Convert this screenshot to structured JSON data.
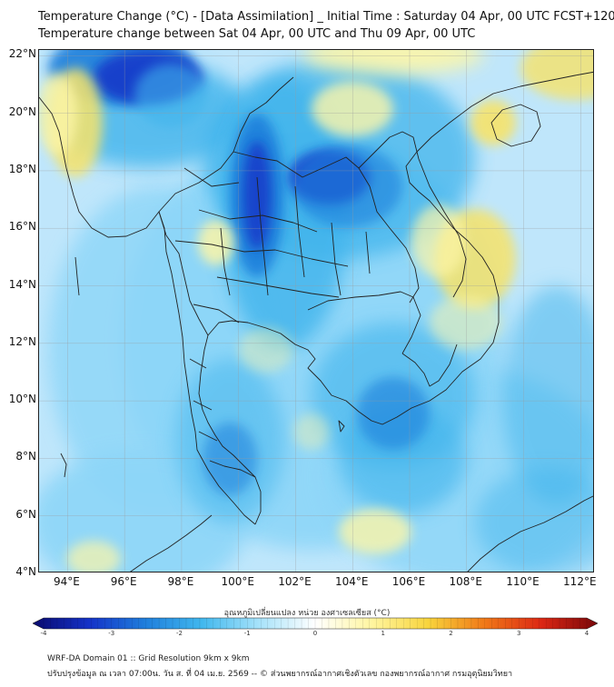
{
  "header": {
    "title_line1": "Temperature Change (°C) - [Data Assimilation] _ Initial Time : Saturday 04 Apr, 00 UTC FCST+120",
    "title_line2": "Temperature change between Sat 04 Apr, 00 UTC and Thu 09 Apr, 00 UTC"
  },
  "map": {
    "lon_range": [
      93,
      112.5
    ],
    "lat_range": [
      4,
      22.2
    ],
    "lat_labels": [
      "22°N",
      "20°N",
      "18°N",
      "16°N",
      "14°N",
      "12°N",
      "10°N",
      "8°N",
      "6°N",
      "4°N"
    ],
    "lon_labels": [
      "94°E",
      "96°E",
      "98°E",
      "100°E",
      "102°E",
      "104°E",
      "106°E",
      "108°E",
      "110°E",
      "112°E"
    ],
    "field_colors": {
      "base": "#bfe6fb",
      "light_blue": "#8dd6f8",
      "mid_blue": "#41b4ec",
      "blue": "#1e7fdb",
      "deep_blue": "#1436c8",
      "pale_yellow": "#fdf6a8",
      "yellow": "#f7e36a"
    },
    "coastline_color": "#222222",
    "grid_color": "#9a9a9a"
  },
  "colorbar": {
    "title": "อุณหภูมิเปลี่ยนแปลง หน่วย องศาเซลเซียส (°C)",
    "ticks": [
      "-4",
      "-3",
      "-2",
      "-1",
      "0",
      "1",
      "2",
      "3",
      "4"
    ],
    "range": [
      -4,
      4
    ],
    "stops": [
      "#0a0a6e",
      "#1432c8",
      "#1f7fdc",
      "#41b8ee",
      "#a6e2fa",
      "#ffffff",
      "#fff5a0",
      "#f8d43c",
      "#f07818",
      "#dc2814",
      "#78060a"
    ]
  },
  "footer": {
    "line1": "WRF-DA Domain 01 :: Grid Resolution 9km x 9km",
    "line2": "ปรับปรุงข้อมูล ณ เวลา 07:00น. วัน ส. ที่ 04 เม.ย. 2569 -- © ส่วนพยากรณ์อากาศเชิงตัวเลข กองพยากรณ์อากาศ กรมอุตุนิยมวิทยา"
  }
}
